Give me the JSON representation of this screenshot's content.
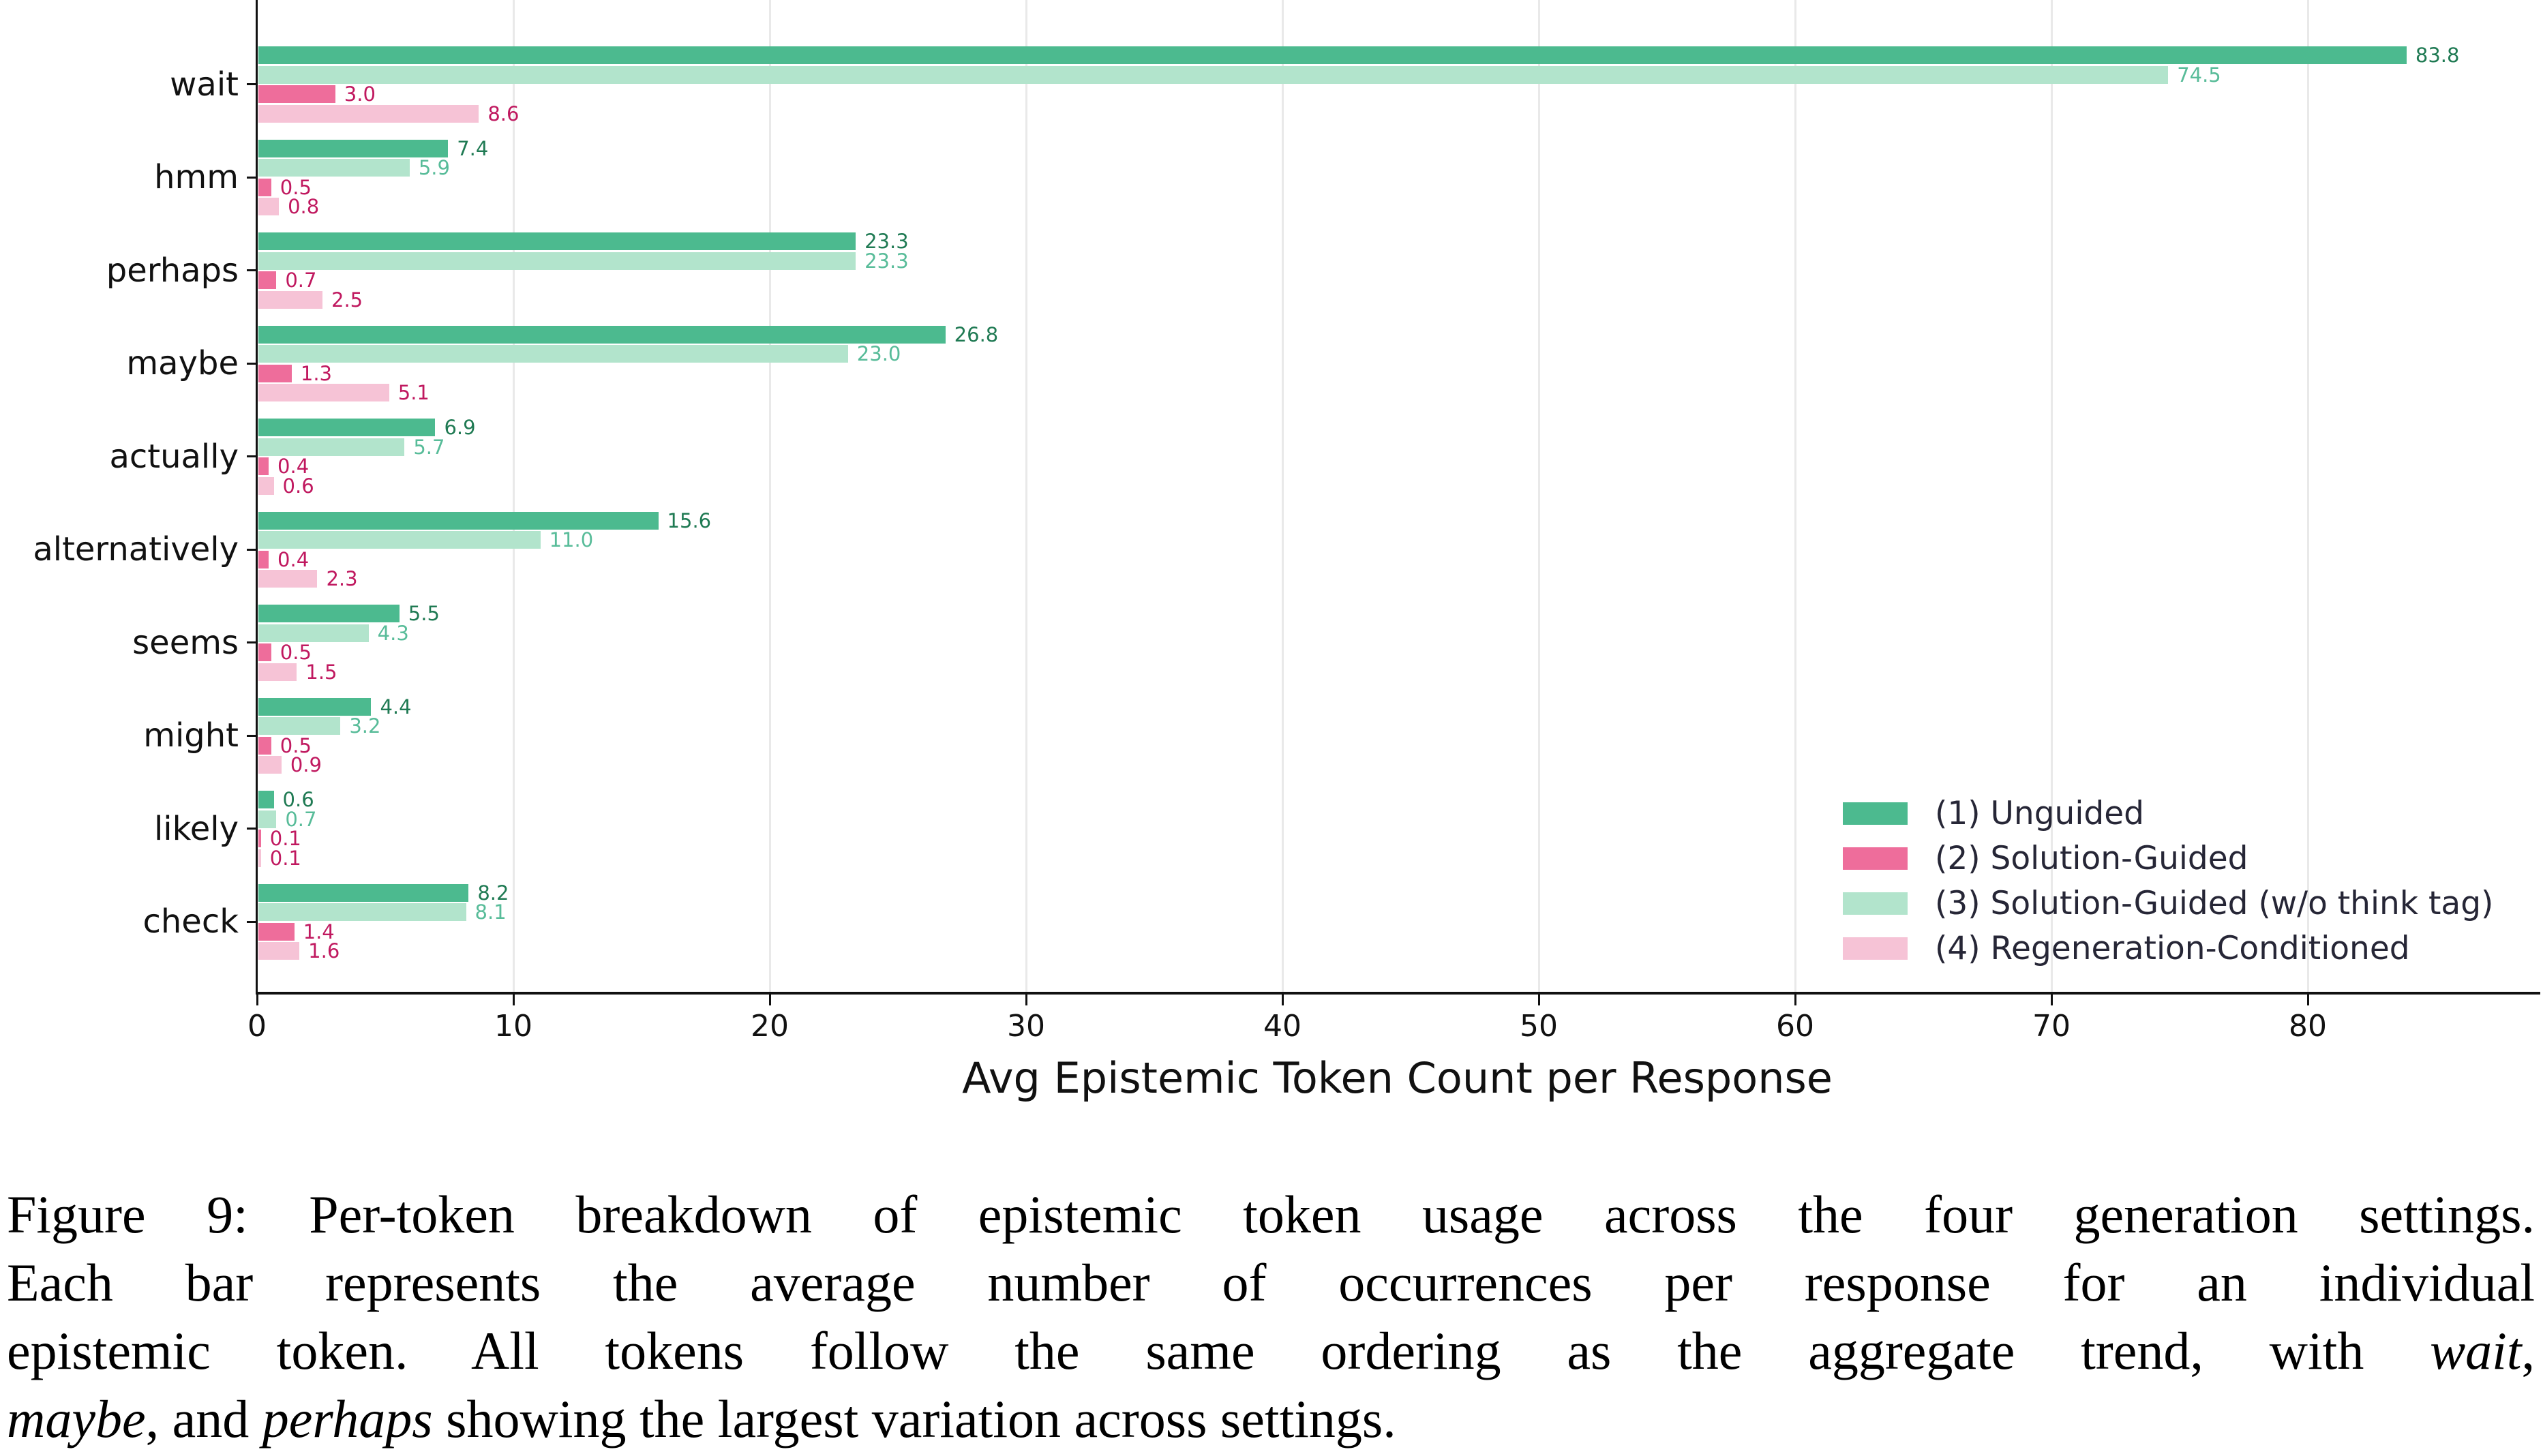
{
  "chart_data": {
    "type": "bar",
    "orientation": "horizontal",
    "title": "",
    "xlabel": "Avg Epistemic Token Count per Response",
    "ylabel": "",
    "xlim": [
      0,
      89
    ],
    "x_ticks": [
      0,
      10,
      20,
      30,
      40,
      50,
      60,
      70,
      80
    ],
    "grid": "vertical",
    "legend_position": "lower right",
    "categories": [
      "wait",
      "hmm",
      "perhaps",
      "maybe",
      "actually",
      "alternatively",
      "seems",
      "might",
      "likely",
      "check"
    ],
    "series": [
      {
        "name": "(1) Unguided",
        "color": "#4cba8f",
        "label_color": "#1f7a53",
        "values": [
          83.8,
          7.4,
          23.3,
          26.8,
          6.9,
          15.6,
          5.5,
          4.4,
          0.6,
          8.2
        ]
      },
      {
        "name": "(2) Solution-Guided",
        "color": "#ee6d9b",
        "label_color": "#c0185f",
        "values": [
          3.0,
          0.5,
          0.7,
          1.3,
          0.4,
          0.4,
          0.5,
          0.5,
          0.1,
          1.4
        ]
      },
      {
        "name": "(3) Solution-Guided (w/o think tag)",
        "color": "#b2e4cc",
        "label_color": "#58bc99",
        "values": [
          74.5,
          5.9,
          23.3,
          23.0,
          5.7,
          11.0,
          4.3,
          3.2,
          0.7,
          8.1
        ]
      },
      {
        "name": "(4) Regeneration-Conditioned",
        "color": "#f6c3d6",
        "label_color": "#c0185f",
        "values": [
          8.6,
          0.8,
          2.5,
          5.1,
          0.6,
          2.3,
          1.5,
          0.9,
          0.1,
          1.6
        ]
      }
    ],
    "bar_draw_order": [
      0,
      2,
      1,
      3
    ]
  },
  "caption": {
    "lines": [
      [
        {
          "t": "Figure 9: Per-token breakdown of epistemic token usage across the four generation settings."
        }
      ],
      [
        {
          "t": "Each bar represents the average number of occurrences per response for an individual"
        }
      ],
      [
        {
          "t": "epistemic token. All tokens follow the same ordering as the aggregate trend, with "
        },
        {
          "t": "wait",
          "i": 1
        },
        {
          "t": ","
        }
      ],
      [
        {
          "t": "maybe",
          "i": 1
        },
        {
          "t": ", and "
        },
        {
          "t": "perhaps",
          "i": 1
        },
        {
          "t": " showing the largest variation across settings."
        }
      ]
    ]
  }
}
